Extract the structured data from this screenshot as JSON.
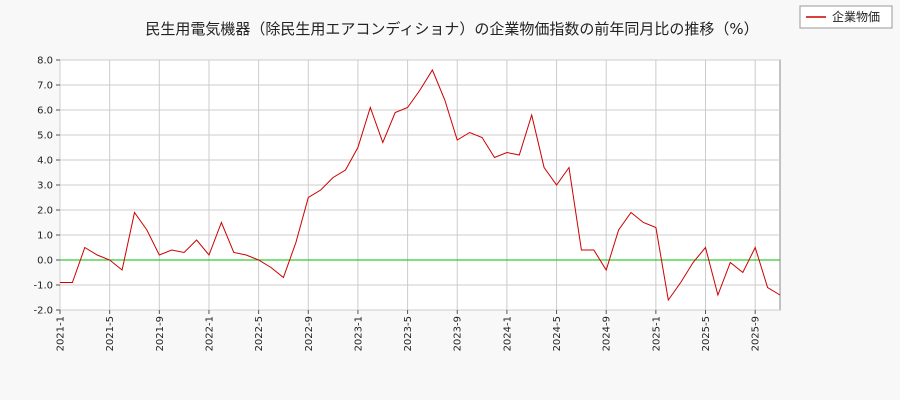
{
  "chart_data": {
    "type": "line",
    "title": "民生用電気機器（除民生用エアコンディショナ）の企業物価指数の前年同月比の推移（%）",
    "xlabel": "",
    "ylabel": "",
    "ylim": [
      -2.0,
      8.0
    ],
    "yticks": [
      "8.0",
      "7.0",
      "6.0",
      "5.0",
      "4.0",
      "3.0",
      "2.0",
      "1.0",
      "0.0",
      "-1.0",
      "-2.0"
    ],
    "xtick_labels": [
      "2021-1",
      "2021-5",
      "2021-9",
      "2022-1",
      "2022-5",
      "2022-9",
      "2023-1",
      "2023-5",
      "2023-9",
      "2024-1",
      "2024-5",
      "2024-9",
      "2025-1",
      "2025-5",
      "2025-9"
    ],
    "grid": true,
    "legend_position": "top-right",
    "reference_line": {
      "value": 0.0,
      "color": "#00c000"
    },
    "series": [
      {
        "name": "企業物価",
        "color": "#cc0000",
        "x": [
          "2021-1",
          "2021-2",
          "2021-3",
          "2021-4",
          "2021-5",
          "2021-6",
          "2021-7",
          "2021-8",
          "2021-9",
          "2021-10",
          "2021-11",
          "2021-12",
          "2022-1",
          "2022-2",
          "2022-3",
          "2022-4",
          "2022-5",
          "2022-6",
          "2022-7",
          "2022-8",
          "2022-9",
          "2022-10",
          "2022-11",
          "2022-12",
          "2023-1",
          "2023-2",
          "2023-3",
          "2023-4",
          "2023-5",
          "2023-6",
          "2023-7",
          "2023-8",
          "2023-9",
          "2023-10",
          "2023-11",
          "2023-12",
          "2024-1",
          "2024-2",
          "2024-3",
          "2024-4",
          "2024-5",
          "2024-6",
          "2024-7",
          "2024-8",
          "2024-9",
          "2024-10",
          "2024-11",
          "2024-12",
          "2025-1",
          "2025-2",
          "2025-3",
          "2025-4",
          "2025-5",
          "2025-6",
          "2025-7",
          "2025-8",
          "2025-9",
          "2025-10",
          "2025-11"
        ],
        "values": [
          -0.9,
          -0.9,
          0.5,
          0.2,
          0.0,
          -0.4,
          1.9,
          1.2,
          0.2,
          0.4,
          0.3,
          0.8,
          0.2,
          1.5,
          0.3,
          0.2,
          0.0,
          -0.3,
          -0.7,
          0.7,
          2.5,
          2.8,
          3.3,
          3.6,
          4.5,
          6.1,
          4.7,
          5.9,
          6.1,
          6.8,
          7.6,
          6.4,
          4.8,
          5.1,
          4.9,
          4.1,
          4.3,
          4.2,
          5.8,
          3.7,
          3.0,
          3.7,
          0.4,
          0.4,
          -0.4,
          1.2,
          1.9,
          1.5,
          1.3,
          -1.6,
          -0.9,
          -0.1,
          0.5,
          -1.4,
          -0.1,
          -0.5,
          0.5,
          -1.1,
          -1.4
        ]
      }
    ]
  }
}
